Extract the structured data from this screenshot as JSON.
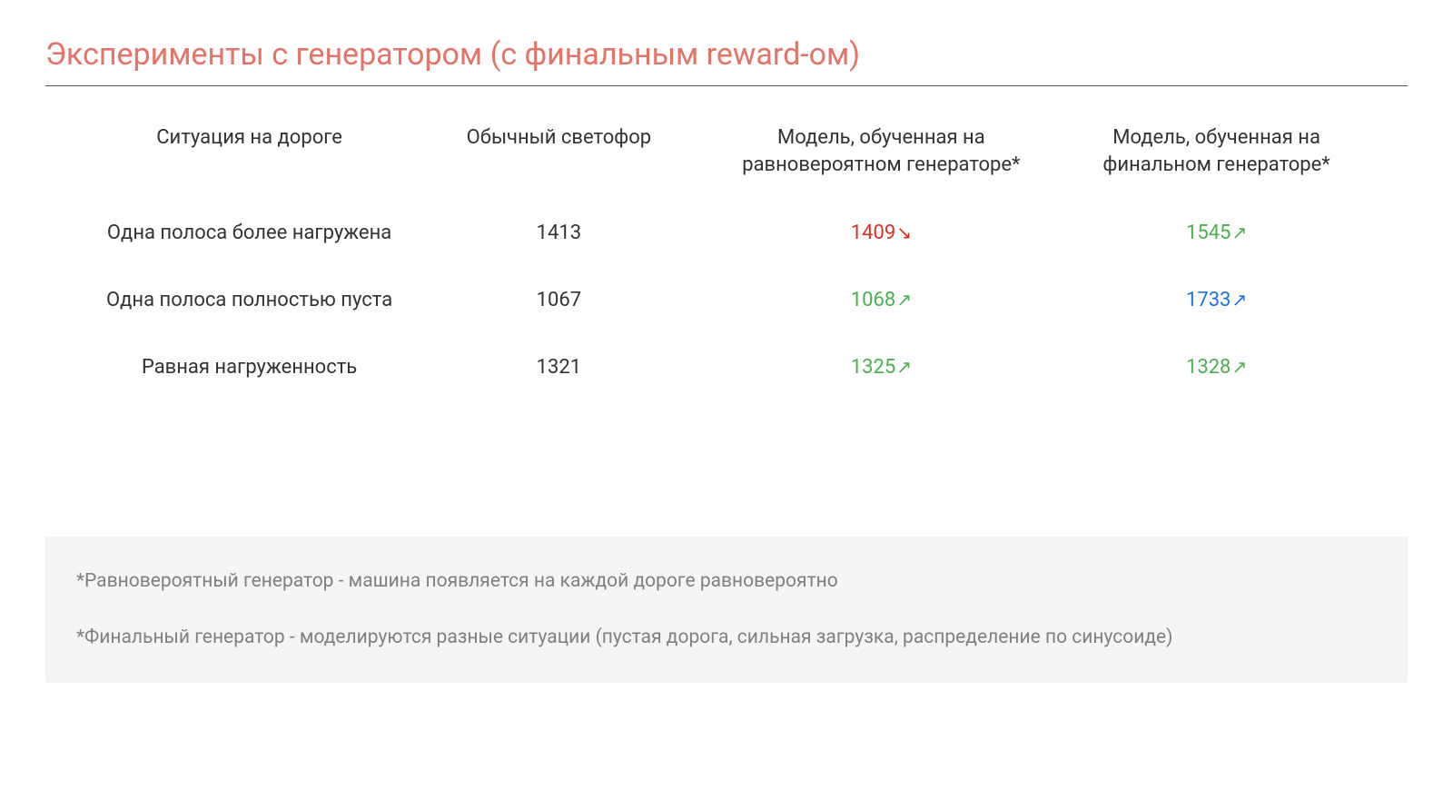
{
  "title": "Эксперименты с генератором (с финальным reward-ом)",
  "colors": {
    "title": "#e57368",
    "text": "#333333",
    "red": "#d93025",
    "green": "#4caf50",
    "blue": "#1a73e8",
    "footnote_bg": "#f5f5f5",
    "footnote_text": "#808080",
    "divider": "#555555"
  },
  "typography": {
    "title_fontsize": 34,
    "header_fontsize": 22,
    "cell_fontsize": 22,
    "footnote_fontsize": 21
  },
  "table": {
    "columns": [
      "Ситуация на дороге",
      "Обычный светофор",
      "Модель, обученная на равновероятном генераторе*",
      "Модель, обученная на финальном генераторе*"
    ],
    "column_widths_pct": [
      26,
      22,
      28,
      24
    ],
    "rows": [
      {
        "label": "Одна полоса более нагружена",
        "baseline": "1413",
        "model_a": {
          "value": "1409",
          "arrow": "down",
          "color": "red"
        },
        "model_b": {
          "value": "1545",
          "arrow": "up",
          "color": "green"
        }
      },
      {
        "label": "Одна полоса полностью пуста",
        "baseline": "1067",
        "model_a": {
          "value": "1068",
          "arrow": "up",
          "color": "green"
        },
        "model_b": {
          "value": "1733",
          "arrow": "up",
          "color": "blue"
        }
      },
      {
        "label": "Равная нагруженность",
        "baseline": "1321",
        "model_a": {
          "value": "1325",
          "arrow": "up",
          "color": "green"
        },
        "model_b": {
          "value": "1328",
          "arrow": "up",
          "color": "green"
        }
      }
    ]
  },
  "arrows": {
    "up": "↗",
    "down": "↘"
  },
  "footnotes": [
    "*Равновероятный генератор - машина появляется на каждой дороге равновероятно",
    "*Финальный генератор - моделируются разные ситуации (пустая дорога, сильная загрузка, распределение по синусоиде)"
  ]
}
